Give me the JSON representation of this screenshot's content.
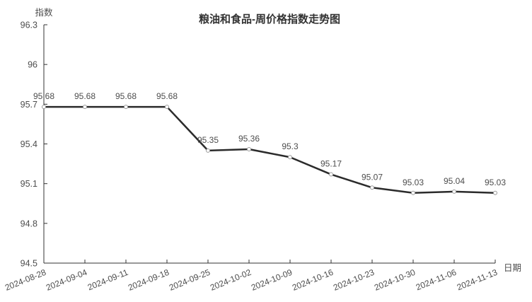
{
  "chart_data": {
    "type": "line",
    "title": "粮油和食品-周价格指数走势图",
    "xlabel": "日期",
    "ylabel": "指数",
    "categories": [
      "2024-08-28",
      "2024-09-04",
      "2024-09-11",
      "2024-09-18",
      "2024-09-25",
      "2024-10-02",
      "2024-10-09",
      "2024-10-16",
      "2024-10-23",
      "2024-10-30",
      "2024-11-06",
      "2024-11-13"
    ],
    "values": [
      95.68,
      95.68,
      95.68,
      95.68,
      95.35,
      95.36,
      95.3,
      95.17,
      95.07,
      95.03,
      95.04,
      95.03
    ],
    "ytick_labels": [
      "96.3",
      "96",
      "95.7",
      "95.4",
      "95.1",
      "94.8",
      "94.5"
    ],
    "ylim": [
      94.5,
      96.3
    ],
    "grid": false,
    "legend_position": "none",
    "point_labels_visible": true,
    "colors": {
      "line": "#2b2b2b",
      "marker_fill": "#ffffff",
      "marker_stroke": "#999999",
      "axis": "#333333",
      "tick_text": "#4d4d4d",
      "title_text": "#333333",
      "background": "#ffffff"
    }
  }
}
